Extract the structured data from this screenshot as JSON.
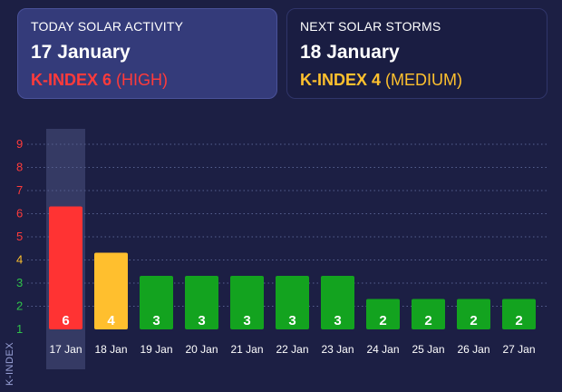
{
  "today_card": {
    "title": "TODAY SOLAR ACTIVITY",
    "date": "17 January",
    "kindex_label": "K-INDEX 6",
    "level_label": "(HIGH)",
    "color": "#ff3b3b"
  },
  "next_card": {
    "title": "NEXT SOLAR STORMS",
    "date": "18 January",
    "kindex_label": "K-INDEX 4",
    "level_label": "(MEDIUM)",
    "color": "#ffc12e"
  },
  "chart_data": {
    "type": "bar",
    "ylabel": "K-INDEX",
    "ylim": [
      1,
      9
    ],
    "yticks": [
      {
        "value": 1,
        "color": "#2fc24a"
      },
      {
        "value": 2,
        "color": "#2fc24a"
      },
      {
        "value": 3,
        "color": "#2fc24a"
      },
      {
        "value": 4,
        "color": "#ffc12e"
      },
      {
        "value": 5,
        "color": "#ff3b3b"
      },
      {
        "value": 6,
        "color": "#ff3b3b"
      },
      {
        "value": 7,
        "color": "#ff3b3b"
      },
      {
        "value": 8,
        "color": "#ff3b3b"
      },
      {
        "value": 9,
        "color": "#ff3b3b"
      }
    ],
    "gridlines": true,
    "highlight_index": 0,
    "highlight_color": "#3a3f6a",
    "categories": [
      "17 Jan",
      "18 Jan",
      "19 Jan",
      "20 Jan",
      "21 Jan",
      "22 Jan",
      "23 Jan",
      "24 Jan",
      "25 Jan",
      "26 Jan",
      "27 Jan"
    ],
    "values": [
      6,
      4,
      3,
      3,
      3,
      3,
      3,
      2,
      2,
      2,
      2
    ],
    "bar_colors": [
      "#ff3333",
      "#ffbf2e",
      "#13a31f",
      "#13a31f",
      "#13a31f",
      "#13a31f",
      "#13a31f",
      "#13a31f",
      "#13a31f",
      "#13a31f",
      "#13a31f"
    ]
  }
}
